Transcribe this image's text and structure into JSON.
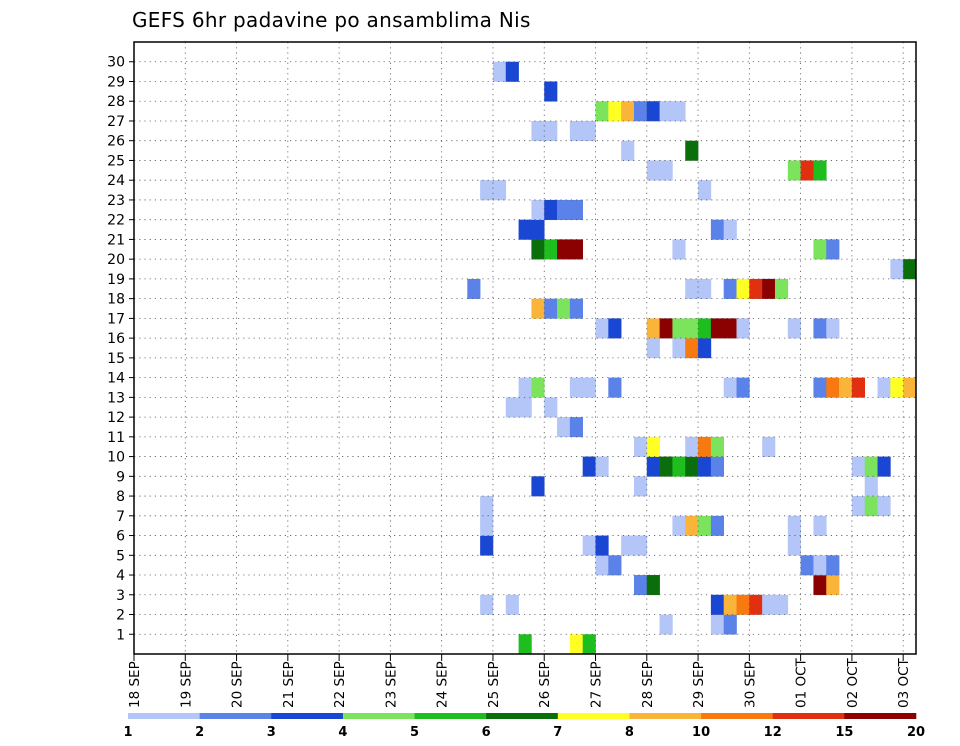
{
  "chart_data": {
    "type": "heatmap",
    "title": "GEFS 6hr padavine po ansamblima Nis",
    "xlabel": "",
    "ylabel": "",
    "y_categories": [
      "1",
      "2",
      "3",
      "4",
      "5",
      "6",
      "7",
      "8",
      "9",
      "10",
      "11",
      "12",
      "13",
      "14",
      "15",
      "16",
      "17",
      "18",
      "19",
      "20",
      "21",
      "22",
      "23",
      "24",
      "25",
      "26",
      "27",
      "28",
      "29",
      "30"
    ],
    "x_tick_labels": [
      "18 SEP",
      "19 SEP",
      "20 SEP",
      "21 SEP",
      "22 SEP",
      "23 SEP",
      "24 SEP",
      "25 SEP",
      "26 SEP",
      "27 SEP",
      "28 SEP",
      "29 SEP",
      "30 SEP",
      "01 OCT",
      "02 OCT",
      "03 OCT"
    ],
    "x_unit": "6-hour steps since 18 SEP 00Z",
    "xlim": [
      0,
      61
    ],
    "grid": true,
    "colorbar": {
      "labels": [
        "1",
        "2",
        "3",
        "4",
        "5",
        "6",
        "7",
        "8",
        "10",
        "12",
        "15",
        "20"
      ],
      "colors": [
        "#b3c6f7",
        "#5b82e8",
        "#1a46d4",
        "#7ce35c",
        "#1fbe1f",
        "#0a6e0a",
        "#ffff26",
        "#fbb43a",
        "#f7790f",
        "#e0300f",
        "#8b0000"
      ]
    },
    "cells": [
      {
        "m": 0,
        "s": 30,
        "v": 5
      },
      {
        "m": 0,
        "s": 34,
        "v": 7
      },
      {
        "m": 0,
        "s": 35,
        "v": 5
      },
      {
        "m": 1,
        "s": 41,
        "v": 1
      },
      {
        "m": 1,
        "s": 45,
        "v": 1
      },
      {
        "m": 1,
        "s": 46,
        "v": 2
      },
      {
        "m": 2,
        "s": 27,
        "v": 1
      },
      {
        "m": 2,
        "s": 29,
        "v": 1
      },
      {
        "m": 2,
        "s": 45,
        "v": 3
      },
      {
        "m": 2,
        "s": 46,
        "v": 8
      },
      {
        "m": 2,
        "s": 47,
        "v": 10
      },
      {
        "m": 2,
        "s": 48,
        "v": 12
      },
      {
        "m": 2,
        "s": 49,
        "v": 1
      },
      {
        "m": 2,
        "s": 50,
        "v": 1
      },
      {
        "m": 3,
        "s": 39,
        "v": 2
      },
      {
        "m": 3,
        "s": 40,
        "v": 6
      },
      {
        "m": 3,
        "s": 53,
        "v": 15
      },
      {
        "m": 3,
        "s": 54,
        "v": 8
      },
      {
        "m": 4,
        "s": 36,
        "v": 1
      },
      {
        "m": 4,
        "s": 37,
        "v": 2
      },
      {
        "m": 4,
        "s": 52,
        "v": 2
      },
      {
        "m": 4,
        "s": 53,
        "v": 1
      },
      {
        "m": 4,
        "s": 54,
        "v": 2
      },
      {
        "m": 5,
        "s": 27,
        "v": 3
      },
      {
        "m": 5,
        "s": 35,
        "v": 1
      },
      {
        "m": 5,
        "s": 36,
        "v": 3
      },
      {
        "m": 5,
        "s": 38,
        "v": 1
      },
      {
        "m": 5,
        "s": 39,
        "v": 1
      },
      {
        "m": 5,
        "s": 51,
        "v": 1
      },
      {
        "m": 6,
        "s": 27,
        "v": 1
      },
      {
        "m": 6,
        "s": 42,
        "v": 1
      },
      {
        "m": 6,
        "s": 43,
        "v": 8
      },
      {
        "m": 6,
        "s": 44,
        "v": 4
      },
      {
        "m": 6,
        "s": 45,
        "v": 2
      },
      {
        "m": 6,
        "s": 51,
        "v": 1
      },
      {
        "m": 6,
        "s": 53,
        "v": 1
      },
      {
        "m": 7,
        "s": 27,
        "v": 1
      },
      {
        "m": 7,
        "s": 56,
        "v": 1
      },
      {
        "m": 7,
        "s": 57,
        "v": 4
      },
      {
        "m": 7,
        "s": 58,
        "v": 1
      },
      {
        "m": 8,
        "s": 31,
        "v": 3
      },
      {
        "m": 8,
        "s": 39,
        "v": 1
      },
      {
        "m": 8,
        "s": 57,
        "v": 1
      },
      {
        "m": 9,
        "s": 35,
        "v": 3
      },
      {
        "m": 9,
        "s": 36,
        "v": 1
      },
      {
        "m": 9,
        "s": 40,
        "v": 3
      },
      {
        "m": 9,
        "s": 41,
        "v": 6
      },
      {
        "m": 9,
        "s": 42,
        "v": 5
      },
      {
        "m": 9,
        "s": 43,
        "v": 6
      },
      {
        "m": 9,
        "s": 44,
        "v": 3
      },
      {
        "m": 9,
        "s": 45,
        "v": 2
      },
      {
        "m": 9,
        "s": 56,
        "v": 1
      },
      {
        "m": 9,
        "s": 57,
        "v": 4
      },
      {
        "m": 9,
        "s": 58,
        "v": 3
      },
      {
        "m": 10,
        "s": 39,
        "v": 1
      },
      {
        "m": 10,
        "s": 40,
        "v": 7
      },
      {
        "m": 10,
        "s": 43,
        "v": 1
      },
      {
        "m": 10,
        "s": 44,
        "v": 10
      },
      {
        "m": 10,
        "s": 45,
        "v": 4
      },
      {
        "m": 10,
        "s": 49,
        "v": 1
      },
      {
        "m": 11,
        "s": 33,
        "v": 1
      },
      {
        "m": 11,
        "s": 34,
        "v": 2
      },
      {
        "m": 12,
        "s": 29,
        "v": 1
      },
      {
        "m": 12,
        "s": 30,
        "v": 1
      },
      {
        "m": 12,
        "s": 32,
        "v": 1
      },
      {
        "m": 13,
        "s": 30,
        "v": 1
      },
      {
        "m": 13,
        "s": 31,
        "v": 4
      },
      {
        "m": 13,
        "s": 34,
        "v": 1
      },
      {
        "m": 13,
        "s": 35,
        "v": 1
      },
      {
        "m": 13,
        "s": 37,
        "v": 2
      },
      {
        "m": 13,
        "s": 46,
        "v": 1
      },
      {
        "m": 13,
        "s": 47,
        "v": 2
      },
      {
        "m": 13,
        "s": 53,
        "v": 2
      },
      {
        "m": 13,
        "s": 54,
        "v": 10
      },
      {
        "m": 13,
        "s": 55,
        "v": 8
      },
      {
        "m": 13,
        "s": 56,
        "v": 12
      },
      {
        "m": 13,
        "s": 58,
        "v": 1
      },
      {
        "m": 13,
        "s": 59,
        "v": 7
      },
      {
        "m": 13,
        "s": 60,
        "v": 8
      },
      {
        "m": 15,
        "s": 40,
        "v": 1
      },
      {
        "m": 15,
        "s": 42,
        "v": 1
      },
      {
        "m": 15,
        "s": 43,
        "v": 10
      },
      {
        "m": 15,
        "s": 44,
        "v": 3
      },
      {
        "m": 16,
        "s": 36,
        "v": 1
      },
      {
        "m": 16,
        "s": 37,
        "v": 3
      },
      {
        "m": 16,
        "s": 40,
        "v": 8
      },
      {
        "m": 16,
        "s": 41,
        "v": 15
      },
      {
        "m": 16,
        "s": 42,
        "v": 4
      },
      {
        "m": 16,
        "s": 43,
        "v": 4
      },
      {
        "m": 16,
        "s": 44,
        "v": 5
      },
      {
        "m": 16,
        "s": 45,
        "v": 20
      },
      {
        "m": 16,
        "s": 46,
        "v": 15
      },
      {
        "m": 16,
        "s": 47,
        "v": 1
      },
      {
        "m": 16,
        "s": 51,
        "v": 1
      },
      {
        "m": 16,
        "s": 53,
        "v": 2
      },
      {
        "m": 16,
        "s": 54,
        "v": 1
      },
      {
        "m": 17,
        "s": 31,
        "v": 8
      },
      {
        "m": 17,
        "s": 32,
        "v": 2
      },
      {
        "m": 17,
        "s": 33,
        "v": 4
      },
      {
        "m": 17,
        "s": 34,
        "v": 2
      },
      {
        "m": 18,
        "s": 26,
        "v": 2
      },
      {
        "m": 18,
        "s": 43,
        "v": 1
      },
      {
        "m": 18,
        "s": 44,
        "v": 1
      },
      {
        "m": 18,
        "s": 46,
        "v": 2
      },
      {
        "m": 18,
        "s": 47,
        "v": 7
      },
      {
        "m": 18,
        "s": 48,
        "v": 12
      },
      {
        "m": 18,
        "s": 49,
        "v": 15
      },
      {
        "m": 18,
        "s": 50,
        "v": 4
      },
      {
        "m": 19,
        "s": 59,
        "v": 1
      },
      {
        "m": 19,
        "s": 60,
        "v": 6
      },
      {
        "m": 20,
        "s": 31,
        "v": 6
      },
      {
        "m": 20,
        "s": 32,
        "v": 5
      },
      {
        "m": 20,
        "s": 33,
        "v": 20
      },
      {
        "m": 20,
        "s": 34,
        "v": 15
      },
      {
        "m": 20,
        "s": 42,
        "v": 1
      },
      {
        "m": 20,
        "s": 53,
        "v": 4
      },
      {
        "m": 20,
        "s": 54,
        "v": 2
      },
      {
        "m": 21,
        "s": 30,
        "v": 3
      },
      {
        "m": 21,
        "s": 31,
        "v": 3
      },
      {
        "m": 21,
        "s": 45,
        "v": 2
      },
      {
        "m": 21,
        "s": 46,
        "v": 1
      },
      {
        "m": 22,
        "s": 31,
        "v": 1
      },
      {
        "m": 22,
        "s": 32,
        "v": 3
      },
      {
        "m": 22,
        "s": 33,
        "v": 2
      },
      {
        "m": 22,
        "s": 34,
        "v": 2
      },
      {
        "m": 23,
        "s": 27,
        "v": 1
      },
      {
        "m": 23,
        "s": 28,
        "v": 1
      },
      {
        "m": 23,
        "s": 44,
        "v": 1
      },
      {
        "m": 24,
        "s": 40,
        "v": 1
      },
      {
        "m": 24,
        "s": 41,
        "v": 1
      },
      {
        "m": 24,
        "s": 51,
        "v": 4
      },
      {
        "m": 24,
        "s": 52,
        "v": 12
      },
      {
        "m": 24,
        "s": 53,
        "v": 5
      },
      {
        "m": 25,
        "s": 38,
        "v": 1
      },
      {
        "m": 25,
        "s": 43,
        "v": 6
      },
      {
        "m": 26,
        "s": 31,
        "v": 1
      },
      {
        "m": 26,
        "s": 32,
        "v": 1
      },
      {
        "m": 26,
        "s": 34,
        "v": 1
      },
      {
        "m": 26,
        "s": 35,
        "v": 1
      },
      {
        "m": 27,
        "s": 36,
        "v": 4
      },
      {
        "m": 27,
        "s": 37,
        "v": 7
      },
      {
        "m": 27,
        "s": 38,
        "v": 8
      },
      {
        "m": 27,
        "s": 39,
        "v": 2
      },
      {
        "m": 27,
        "s": 40,
        "v": 3
      },
      {
        "m": 27,
        "s": 41,
        "v": 1
      },
      {
        "m": 27,
        "s": 42,
        "v": 1
      },
      {
        "m": 28,
        "s": 32,
        "v": 3
      },
      {
        "m": 29,
        "s": 28,
        "v": 1
      },
      {
        "m": 29,
        "s": 29,
        "v": 3
      }
    ]
  }
}
